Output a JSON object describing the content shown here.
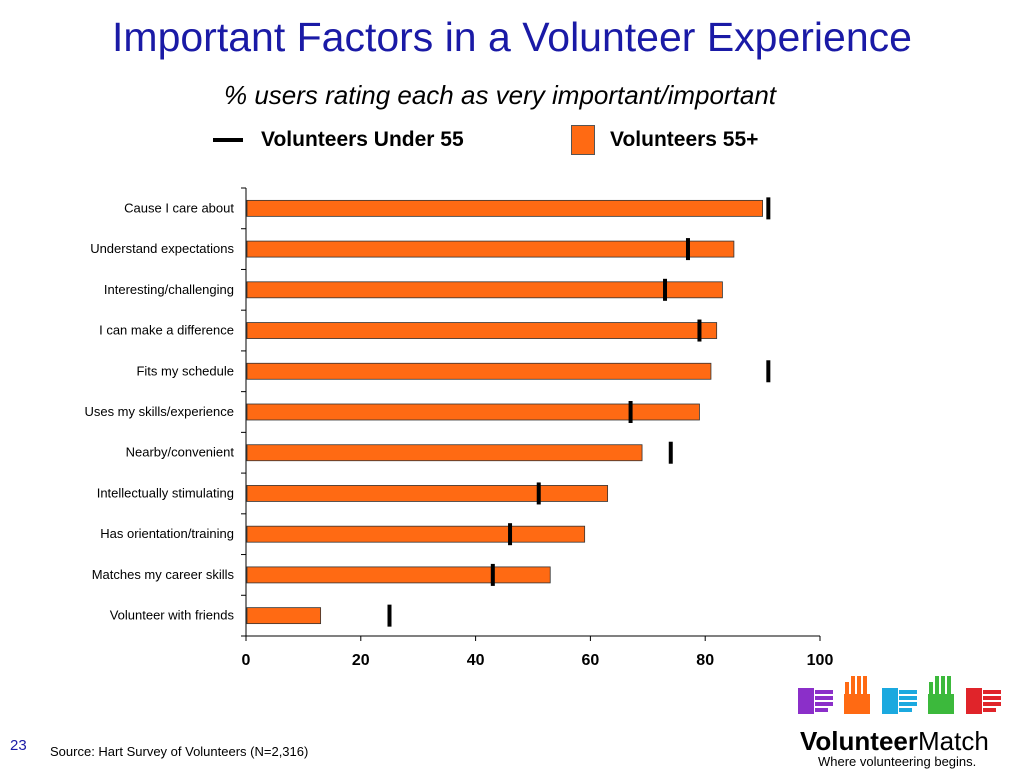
{
  "slide": {
    "title": "Important Factors in a Volunteer Experience",
    "subtitle": "% users rating each as very important/important",
    "page_number": "23",
    "source": "Source: Hart Survey of Volunteers (N=2,316)"
  },
  "legend": {
    "under55": "Volunteers Under 55",
    "over55": "Volunteers 55+"
  },
  "logo": {
    "name_bold": "Volunteer",
    "name_light": "Match",
    "tagline": "Where volunteering begins.",
    "hand_colors": [
      "#8b2fc9",
      "#ff6a13",
      "#1ba9df",
      "#3cb93c",
      "#e0242a"
    ]
  },
  "chart_data": {
    "type": "bar",
    "orientation": "horizontal",
    "categories": [
      "Cause I care about",
      "Understand expectations",
      "Interesting/challenging",
      "I can make a difference",
      "Fits my schedule",
      "Uses my skills/experience",
      "Nearby/convenient",
      "Intellectually stimulating",
      "Has orientation/training",
      "Matches my career skills",
      "Volunteer with friends"
    ],
    "series": [
      {
        "name": "Volunteers 55+",
        "style": "bar",
        "color": "#ff6a13",
        "values": [
          90,
          85,
          83,
          82,
          81,
          79,
          69,
          63,
          59,
          53,
          13
        ]
      },
      {
        "name": "Volunteers Under 55",
        "style": "marker",
        "color": "#000000",
        "values": [
          91,
          77,
          73,
          79,
          91,
          67,
          74,
          51,
          46,
          43,
          25
        ]
      }
    ],
    "xlim": [
      0,
      100
    ],
    "xticks": [
      "0",
      "20",
      "40",
      "60",
      "80",
      "100"
    ],
    "grid": false
  }
}
